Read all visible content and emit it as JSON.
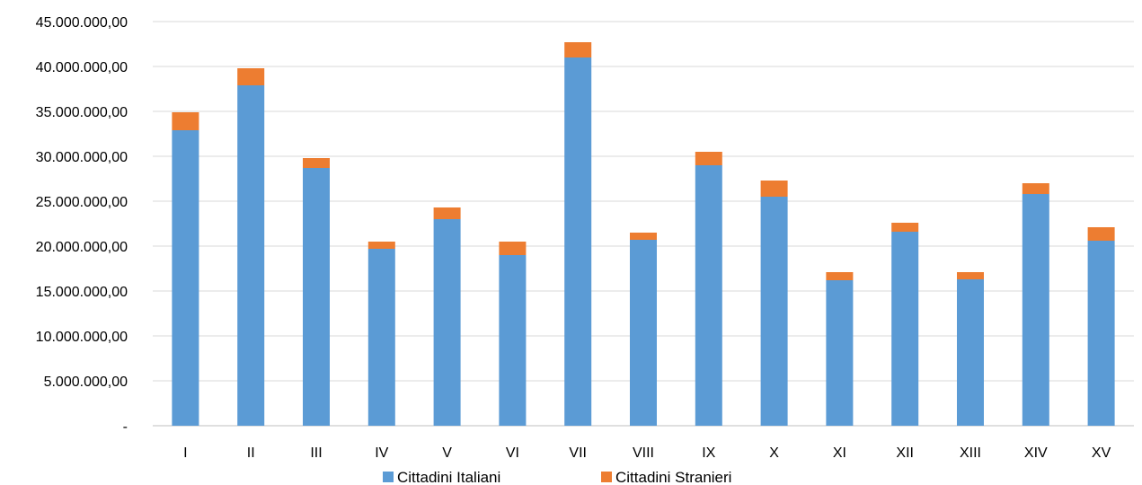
{
  "chart_data": {
    "type": "bar",
    "stacked": true,
    "categories": [
      "I",
      "II",
      "III",
      "IV",
      "V",
      "VI",
      "VII",
      "VIII",
      "IX",
      "X",
      "XI",
      "XII",
      "XIII",
      "XIV",
      "XV"
    ],
    "series": [
      {
        "name": "Cittadini Italiani",
        "color": "#5B9BD5",
        "values": [
          32900000,
          37900000,
          28700000,
          19700000,
          23000000,
          19000000,
          41000000,
          20700000,
          29000000,
          25500000,
          16200000,
          21600000,
          16300000,
          25800000,
          20600000
        ]
      },
      {
        "name": "Cittadini Stranieri",
        "color": "#ED7D31",
        "values": [
          2000000,
          1900000,
          1100000,
          800000,
          1300000,
          1500000,
          1700000,
          800000,
          1500000,
          1800000,
          900000,
          1000000,
          800000,
          1200000,
          1500000
        ]
      }
    ],
    "ylim": [
      0,
      45000000
    ],
    "yticks": [
      0,
      5000000,
      10000000,
      15000000,
      20000000,
      25000000,
      30000000,
      35000000,
      40000000,
      45000000
    ],
    "ytick_labels": [
      "-",
      "5.000.000,00",
      "10.000.000,00",
      "15.000.000,00",
      "20.000.000,00",
      "25.000.000,00",
      "30.000.000,00",
      "35.000.000,00",
      "40.000.000,00",
      "45.000.000,00"
    ],
    "grid": true,
    "legend_position": "bottom",
    "title": "",
    "xlabel": "",
    "ylabel": ""
  }
}
